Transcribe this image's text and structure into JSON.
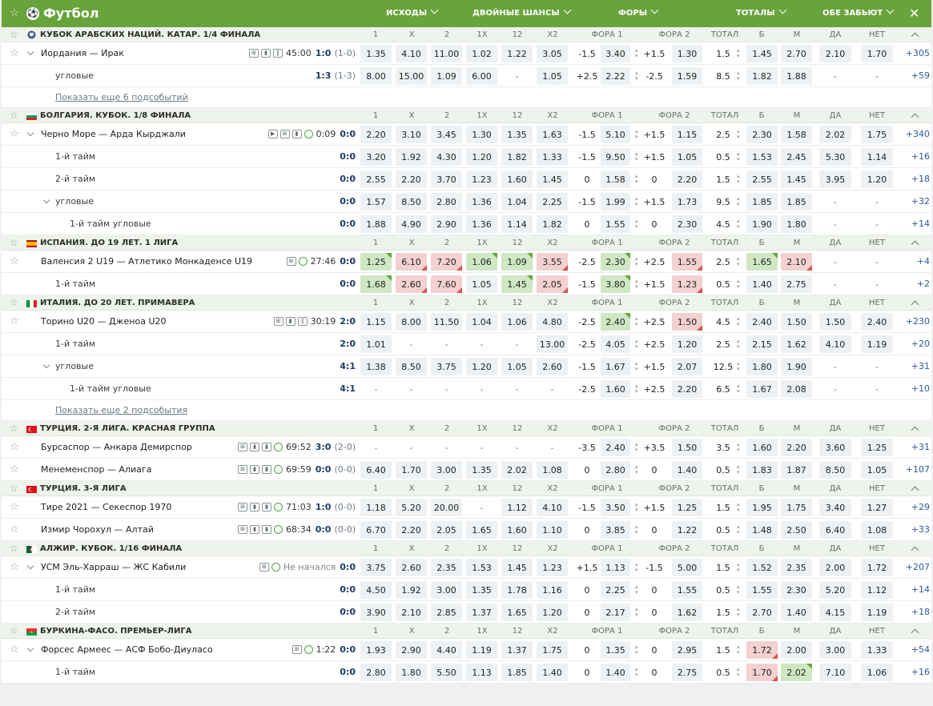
{
  "header": {
    "title": "Футбол",
    "cols": [
      "ИСХОДЫ",
      "ДВОЙНЫЕ ШАНСЫ",
      "ФОРЫ",
      "ТОТАЛЫ",
      "ОБЕ ЗАБЬЮТ"
    ]
  },
  "colheads": [
    "1",
    "X",
    "2",
    "1X",
    "12",
    "X2",
    "ФОРА 1",
    "ФОРА 2",
    "ТОТАЛ",
    "Б",
    "М",
    "ДА",
    "НЕТ"
  ],
  "show_more_1": "Показать еще 6 подсобытий",
  "show_more_2": "Показать еще 2 подсобытия",
  "leagues": [
    {
      "name": "КУБОК АРАБСКИХ НАЦИЙ. КАТАР. 1/4 ФИНАЛА",
      "flag": "cup",
      "rows": [
        {
          "type": "match",
          "team": "Иордания — Ирак",
          "icons": "ci",
          "time": "45:00",
          "score": "1:0",
          "sc2": "(1-0)",
          "chev": true,
          "o": [
            "1.35",
            "4.10",
            "11.00",
            "1.02",
            "1.22",
            "3.05"
          ],
          "f1": [
            "-1.5",
            "3.40"
          ],
          "f2": [
            "+1.5",
            "1.30"
          ],
          "t": [
            "1.5",
            "1.45",
            "2.70"
          ],
          "b": [
            "2.10",
            "1.70"
          ],
          "more": "+305"
        },
        {
          "type": "sub",
          "team": "угловые",
          "score": "1:3",
          "sc2": "(1-3)",
          "o": [
            "8.00",
            "15.00",
            "1.09",
            "6.00",
            "-",
            "1.05"
          ],
          "f1": [
            "+2.5",
            "2.22"
          ],
          "f2": [
            "-2.5",
            "1.59"
          ],
          "t": [
            "8.5",
            "1.82",
            "1.88"
          ],
          "b": [
            "-",
            "-"
          ],
          "more": "+59"
        },
        {
          "type": "showmore",
          "text": "show_more_1"
        }
      ]
    },
    {
      "name": "БОЛГАРИЯ. КУБОК. 1/8 ФИНАЛА",
      "flag": "bg",
      "rows": [
        {
          "type": "match",
          "team": "Черно Море — Арда Кырджали",
          "icons": "tv",
          "time": "0:09",
          "score": "0:0",
          "sc2": "",
          "chev": true,
          "o": [
            "2.20",
            "3.10",
            "3.45",
            "1.30",
            "1.35",
            "1.63"
          ],
          "f1": [
            "-1.5",
            "5.10"
          ],
          "f2": [
            "+1.5",
            "1.15"
          ],
          "t": [
            "2.5",
            "2.30",
            "1.58"
          ],
          "b": [
            "2.02",
            "1.75"
          ],
          "more": "+340"
        },
        {
          "type": "sub",
          "team": "1-й тайм",
          "score": "0:0",
          "sc2": "",
          "o": [
            "3.20",
            "1.92",
            "4.30",
            "1.20",
            "1.82",
            "1.33"
          ],
          "f1": [
            "-1.5",
            "9.50"
          ],
          "f2": [
            "+1.5",
            "1.05"
          ],
          "t": [
            "0.5",
            "1.53",
            "2.45"
          ],
          "b": [
            "5.30",
            "1.14"
          ],
          "more": "+16"
        },
        {
          "type": "sub",
          "team": "2-й тайм",
          "score": "0:0",
          "sc2": "",
          "o": [
            "2.55",
            "2.20",
            "3.70",
            "1.23",
            "1.60",
            "1.45"
          ],
          "f1": [
            "0",
            "1.58"
          ],
          "f2": [
            "0",
            "2.20"
          ],
          "t": [
            "1.5",
            "2.55",
            "1.45"
          ],
          "b": [
            "3.95",
            "1.20"
          ],
          "more": "+18"
        },
        {
          "type": "sub",
          "team": "угловые",
          "score": "0:0",
          "sc2": "",
          "chev": true,
          "o": [
            "1.57",
            "8.50",
            "2.80",
            "1.36",
            "1.04",
            "2.25"
          ],
          "f1": [
            "-1.5",
            "1.99"
          ],
          "f2": [
            "+1.5",
            "1.73"
          ],
          "t": [
            "9.5",
            "1.85",
            "1.85"
          ],
          "b": [
            "-",
            "-"
          ],
          "more": "+32"
        },
        {
          "type": "sub2",
          "team": "1-й тайм угловые",
          "score": "0:0",
          "sc2": "",
          "o": [
            "1.88",
            "4.90",
            "2.90",
            "1.36",
            "1.14",
            "1.82"
          ],
          "f1": [
            "0",
            "1.55"
          ],
          "f2": [
            "0",
            "2.30"
          ],
          "t": [
            "4.5",
            "1.90",
            "1.80"
          ],
          "b": [
            "-",
            "-"
          ],
          "more": "+14"
        }
      ]
    },
    {
      "name": "ИСПАНИЯ. ДО 19 ЛЕТ. 1 ЛИГА",
      "flag": "es",
      "rows": [
        {
          "type": "match",
          "team": "Валенсия 2 U19 — Атлетико Монкаденсе U19",
          "icons": "c",
          "time": "27:46",
          "score": "0:0",
          "sc2": "",
          "o": [
            "1.25",
            "6.10",
            "7.20",
            "1.06",
            "1.09",
            "3.55"
          ],
          "f1": [
            "-2.5",
            "2.30"
          ],
          "f2": [
            "+2.5",
            "1.55"
          ],
          "t": [
            "2.5",
            "1.65",
            "2.10"
          ],
          "b": [
            "-",
            "-"
          ],
          "more": "+4",
          "cls": {
            "o": [
              "up",
              "dn",
              "dn",
              "up",
              "up",
              "dn"
            ],
            "f1": "up",
            "f2": "dn",
            "tb": "up",
            "tm": "dn"
          }
        },
        {
          "type": "sub",
          "team": "1-й тайм",
          "score": "0:0",
          "sc2": "",
          "o": [
            "1.68",
            "2.60",
            "7.60",
            "1.05",
            "1.45",
            "2.05"
          ],
          "f1": [
            "-1.5",
            "3.80"
          ],
          "f2": [
            "+1.5",
            "1.23"
          ],
          "t": [
            "0.5",
            "1.40",
            "2.75"
          ],
          "b": [
            "-",
            "-"
          ],
          "more": "+2",
          "cls": {
            "o": [
              "up",
              "dn",
              "dn",
              "",
              "up",
              "dn"
            ],
            "f1": "up",
            "f2": "dn"
          }
        }
      ]
    },
    {
      "name": "ИТАЛИЯ. ДО 20 ЛЕТ. ПРИМАВЕРА",
      "flag": "it",
      "rows": [
        {
          "type": "match",
          "team": "Торино U20 — Дженоа U20",
          "icons": "ci",
          "time": "30:19",
          "score": "2:0",
          "sc2": "",
          "o": [
            "1.15",
            "8.00",
            "11.50",
            "1.04",
            "1.06",
            "4.80"
          ],
          "f1": [
            "-2.5",
            "2.40"
          ],
          "f2": [
            "+2.5",
            "1.50"
          ],
          "t": [
            "4.5",
            "2.40",
            "1.50"
          ],
          "b": [
            "1.50",
            "2.40"
          ],
          "more": "+230",
          "cls": {
            "f1": "up",
            "f2": "dn"
          }
        },
        {
          "type": "sub",
          "team": "1-й тайм",
          "score": "2:0",
          "sc2": "",
          "o": [
            "1.01",
            "-",
            "-",
            "-",
            "-",
            "13.00"
          ],
          "f1": [
            "-2.5",
            "4.05"
          ],
          "f2": [
            "+2.5",
            "1.20"
          ],
          "t": [
            "2.5",
            "2.15",
            "1.62"
          ],
          "b": [
            "4.10",
            "1.19"
          ],
          "more": "+20"
        },
        {
          "type": "sub",
          "team": "угловые",
          "score": "4:1",
          "sc2": "",
          "chev": true,
          "o": [
            "1.38",
            "8.50",
            "3.75",
            "1.20",
            "1.05",
            "2.60"
          ],
          "f1": [
            "-1.5",
            "1.67"
          ],
          "f2": [
            "+1.5",
            "2.07"
          ],
          "t": [
            "12.5",
            "1.80",
            "1.90"
          ],
          "b": [
            "-",
            "-"
          ],
          "more": "+31"
        },
        {
          "type": "sub2",
          "team": "1-й тайм угловые",
          "score": "4:1",
          "sc2": "",
          "o": [
            "-",
            "-",
            "-",
            "-",
            "-",
            "-"
          ],
          "f1": [
            "-2.5",
            "1.60"
          ],
          "f2": [
            "+2.5",
            "2.20"
          ],
          "t": [
            "6.5",
            "1.67",
            "2.08"
          ],
          "b": [
            "-",
            "-"
          ],
          "more": "+10"
        },
        {
          "type": "showmore",
          "text": "show_more_2"
        }
      ]
    },
    {
      "name": "ТУРЦИЯ. 2-Я ЛИГА. КРАСНАЯ ГРУППА",
      "flag": "tr",
      "rows": [
        {
          "type": "match",
          "team": "Бурсаспор — Анкара Демирспор",
          "icons": "cii",
          "time": "69:52",
          "score": "3:0",
          "sc2": "(2-0)",
          "o": [
            "-",
            "-",
            "-",
            "-",
            "-",
            "-"
          ],
          "f1": [
            "-3.5",
            "2.40"
          ],
          "f2": [
            "+3.5",
            "1.50"
          ],
          "t": [
            "3.5",
            "1.60",
            "2.20"
          ],
          "b": [
            "3.60",
            "1.25"
          ],
          "more": "+31"
        },
        {
          "type": "match",
          "team": "Менеменспор — Алиага",
          "icons": "cii",
          "time": "69:59",
          "score": "0:0",
          "sc2": "(0-0)",
          "o": [
            "6.40",
            "1.70",
            "3.00",
            "1.35",
            "2.02",
            "1.08"
          ],
          "f1": [
            "0",
            "2.80"
          ],
          "f2": [
            "0",
            "1.40"
          ],
          "t": [
            "0.5",
            "1.83",
            "1.87"
          ],
          "b": [
            "8.50",
            "1.05"
          ],
          "more": "+107"
        }
      ]
    },
    {
      "name": "ТУРЦИЯ. 3-Я ЛИГА",
      "flag": "tr",
      "rows": [
        {
          "type": "match",
          "team": "Тире 2021 — Секеспор 1970",
          "icons": "cii",
          "time": "71:03",
          "score": "1:0",
          "sc2": "(0-0)",
          "o": [
            "1.18",
            "5.20",
            "20.00",
            "-",
            "1.12",
            "4.10"
          ],
          "f1": [
            "-1.5",
            "3.50"
          ],
          "f2": [
            "+1.5",
            "1.25"
          ],
          "t": [
            "1.5",
            "1.95",
            "1.75"
          ],
          "b": [
            "3.40",
            "1.27"
          ],
          "more": "+29"
        },
        {
          "type": "match",
          "team": "Измир Чорохул — Алтай",
          "icons": "cii",
          "time": "68:34",
          "score": "0:0",
          "sc2": "(0-0)",
          "o": [
            "6.70",
            "2.20",
            "2.05",
            "1.65",
            "1.60",
            "1.10"
          ],
          "f1": [
            "0",
            "3.85"
          ],
          "f2": [
            "0",
            "1.22"
          ],
          "t": [
            "0.5",
            "1.48",
            "2.50"
          ],
          "b": [
            "6.40",
            "1.08"
          ],
          "more": "+33"
        }
      ]
    },
    {
      "name": "АЛЖИР. КУБОК. 1/16 ФИНАЛА",
      "flag": "dz",
      "rows": [
        {
          "type": "match",
          "team": "УСМ Эль-Харраш — ЖС Кабили",
          "icons": "c",
          "time": "Не начался",
          "score": "0:0",
          "sc2": "",
          "chev": true,
          "o": [
            "3.75",
            "2.60",
            "2.35",
            "1.53",
            "1.45",
            "1.23"
          ],
          "f1": [
            "+1.5",
            "1.13"
          ],
          "f2": [
            "-1.5",
            "5.00"
          ],
          "t": [
            "1.5",
            "1.52",
            "2.35"
          ],
          "b": [
            "2.00",
            "1.72"
          ],
          "more": "+207"
        },
        {
          "type": "sub",
          "team": "1-й тайм",
          "score": "0:0",
          "sc2": "",
          "o": [
            "4.50",
            "1.92",
            "3.00",
            "1.35",
            "1.78",
            "1.16"
          ],
          "f1": [
            "0",
            "2.25"
          ],
          "f2": [
            "0",
            "1.55"
          ],
          "t": [
            "0.5",
            "1.55",
            "2.30"
          ],
          "b": [
            "5.20",
            "1.12"
          ],
          "more": "+14"
        },
        {
          "type": "sub",
          "team": "2-й тайм",
          "score": "0:0",
          "sc2": "",
          "o": [
            "3.90",
            "2.10",
            "2.85",
            "1.37",
            "1.65",
            "1.20"
          ],
          "f1": [
            "0",
            "2.17"
          ],
          "f2": [
            "0",
            "1.62"
          ],
          "t": [
            "1.5",
            "2.70",
            "1.40"
          ],
          "b": [
            "4.15",
            "1.19"
          ],
          "more": "+18"
        }
      ]
    },
    {
      "name": "БУРКИНА-ФАСО. ПРЕМЬЕР-ЛИГА",
      "flag": "bf",
      "rows": [
        {
          "type": "match",
          "team": "Форсес Армеес — АСФ Бобо-Диуласо",
          "icons": "c",
          "time": "1:22",
          "score": "0:0",
          "sc2": "",
          "chev": true,
          "o": [
            "1.93",
            "2.90",
            "4.40",
            "1.19",
            "1.37",
            "1.75"
          ],
          "f1": [
            "0",
            "1.35"
          ],
          "f2": [
            "0",
            "2.95"
          ],
          "t": [
            "1.5",
            "1.72",
            "2.00"
          ],
          "b": [
            "3.00",
            "1.33"
          ],
          "more": "+54",
          "cls": {
            "tb": "dn"
          }
        },
        {
          "type": "sub",
          "team": "1-й тайм",
          "score": "0:0",
          "sc2": "",
          "o": [
            "2.80",
            "1.80",
            "5.50",
            "1.13",
            "1.85",
            "1.40"
          ],
          "f1": [
            "0",
            "1.40"
          ],
          "f2": [
            "0",
            "2.75"
          ],
          "t": [
            "0.5",
            "1.70",
            "2.02"
          ],
          "b": [
            "7.10",
            "1.06"
          ],
          "more": "+16",
          "cls": {
            "tb": "dn",
            "tm": "up"
          }
        }
      ]
    }
  ]
}
